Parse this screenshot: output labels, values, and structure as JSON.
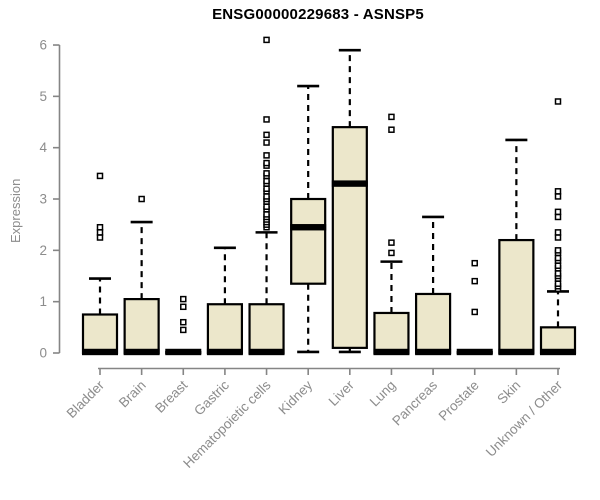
{
  "chart_data": {
    "type": "boxplot",
    "title": "ENSG00000229683 - ASNSP5",
    "ylabel": "Expression",
    "xlabel": "",
    "ylim": [
      0,
      6
    ],
    "yticks": [
      0,
      1,
      2,
      3,
      4,
      5,
      6
    ],
    "grid": false,
    "legend": "none",
    "categories": [
      "Bladder",
      "Brain",
      "Breast",
      "Gastric",
      "Hematopoietic cells",
      "Kidney",
      "Liver",
      "Lung",
      "Pancreas",
      "Prostate",
      "Skin",
      "Unknown / Other"
    ],
    "series": [
      {
        "name": "Bladder",
        "low": 0,
        "q1": 0,
        "median": 0.02,
        "q3": 0.75,
        "high": 1.45,
        "outliers": [
          2.25,
          2.35,
          2.45,
          3.45
        ]
      },
      {
        "name": "Brain",
        "low": 0,
        "q1": 0,
        "median": 0.02,
        "q3": 1.05,
        "high": 2.55,
        "outliers": [
          3.0
        ]
      },
      {
        "name": "Breast",
        "low": 0,
        "q1": 0,
        "median": 0.02,
        "q3": 0.02,
        "high": 0.02,
        "outliers": [
          0.45,
          0.6,
          0.9,
          1.05
        ]
      },
      {
        "name": "Gastric",
        "low": 0,
        "q1": 0,
        "median": 0.02,
        "q3": 0.95,
        "high": 2.05,
        "outliers": []
      },
      {
        "name": "Hematopoietic cells",
        "low": 0,
        "q1": 0,
        "median": 0.02,
        "q3": 0.95,
        "high": 2.35,
        "outliers": [
          2.45,
          2.5,
          2.55,
          2.6,
          2.65,
          2.7,
          2.8,
          2.85,
          2.95,
          3.0,
          3.05,
          3.15,
          3.2,
          3.3,
          3.35,
          3.45,
          3.5,
          3.65,
          3.7,
          3.85,
          4.1,
          4.25,
          4.55,
          6.1
        ]
      },
      {
        "name": "Kidney",
        "low": 0.02,
        "q1": 1.35,
        "median": 2.45,
        "q3": 3.0,
        "high": 5.2,
        "outliers": []
      },
      {
        "name": "Liver",
        "low": 0.02,
        "q1": 0.1,
        "median": 3.3,
        "q3": 4.4,
        "high": 5.9,
        "outliers": []
      },
      {
        "name": "Lung",
        "low": 0,
        "q1": 0,
        "median": 0.02,
        "q3": 0.78,
        "high": 1.78,
        "outliers": [
          1.95,
          2.15,
          4.35,
          4.6
        ]
      },
      {
        "name": "Pancreas",
        "low": 0,
        "q1": 0,
        "median": 0.02,
        "q3": 1.15,
        "high": 2.65,
        "outliers": []
      },
      {
        "name": "Prostate",
        "low": 0,
        "q1": 0,
        "median": 0.02,
        "q3": 0.02,
        "high": 0.02,
        "outliers": [
          0.8,
          1.4,
          1.75
        ]
      },
      {
        "name": "Skin",
        "low": 0,
        "q1": 0,
        "median": 0.02,
        "q3": 2.2,
        "high": 4.15,
        "outliers": []
      },
      {
        "name": "Unknown / Other",
        "low": 0,
        "q1": 0,
        "median": 0.02,
        "q3": 0.5,
        "high": 1.2,
        "outliers": [
          1.25,
          1.3,
          1.35,
          1.45,
          1.5,
          1.55,
          1.65,
          1.7,
          1.8,
          1.85,
          1.95,
          2.0,
          2.25,
          2.35,
          2.65,
          2.75,
          3.05,
          3.15,
          4.9
        ]
      }
    ],
    "colors": {
      "background": "#ffffff",
      "box_fill": "#ece7cb",
      "box_border": "#000000",
      "median": "#000000",
      "whisker": "#000000",
      "outlier": "#000000",
      "axis_line": "#858585",
      "axis_text": "#8c8c8c",
      "title": "#000000"
    }
  }
}
